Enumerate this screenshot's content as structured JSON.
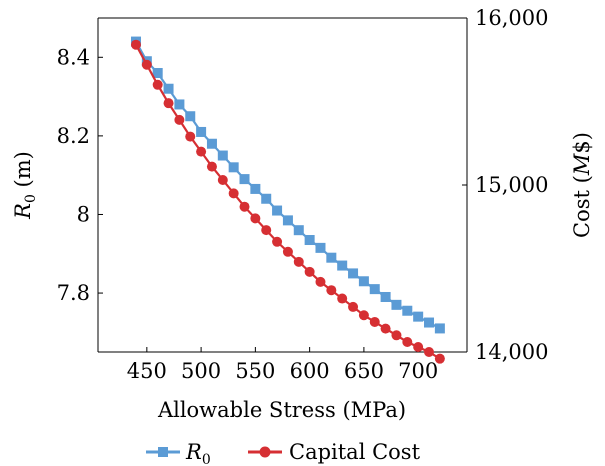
{
  "chart_data": {
    "type": "line",
    "xlabel": "Allowable Stress (MPa)",
    "ylabel_left": "R0 (m)",
    "ylabel_right": "Cost (M$)",
    "xlim": [
      405,
      745
    ],
    "ylim_left": [
      7.65,
      8.5
    ],
    "ylim_right": [
      14000,
      16000
    ],
    "xticks": [
      450,
      500,
      550,
      600,
      650,
      700
    ],
    "yticks_left": [
      7.8,
      8,
      8.2,
      8.4
    ],
    "yticks_right": [
      14000,
      15000,
      16000
    ],
    "ytick_labels_left": [
      "7.8",
      "8",
      "8.2",
      "8.4"
    ],
    "ytick_labels_right": [
      "14,000",
      "15,000",
      "16,000"
    ],
    "grid": false,
    "legend_position": "bottom-center",
    "x": [
      440,
      450,
      460,
      470,
      480,
      490,
      500,
      510,
      520,
      530,
      540,
      550,
      560,
      570,
      580,
      590,
      600,
      610,
      620,
      630,
      640,
      650,
      660,
      670,
      680,
      690,
      700,
      710,
      720
    ],
    "series": [
      {
        "name": "R0",
        "axis": "left",
        "color": "#5b9bd5",
        "marker": "square",
        "values": [
          8.44,
          8.39,
          8.36,
          8.32,
          8.28,
          8.25,
          8.21,
          8.18,
          8.15,
          8.12,
          8.09,
          8.065,
          8.04,
          8.01,
          7.985,
          7.96,
          7.935,
          7.915,
          7.89,
          7.87,
          7.85,
          7.83,
          7.81,
          7.79,
          7.77,
          7.755,
          7.74,
          7.725,
          7.71
        ]
      },
      {
        "name": "Capital Cost",
        "axis": "right",
        "color": "#d62f33",
        "marker": "circle",
        "values": [
          15840,
          15720,
          15600,
          15490,
          15390,
          15290,
          15200,
          15110,
          15030,
          14950,
          14870,
          14800,
          14730,
          14660,
          14600,
          14540,
          14480,
          14420,
          14370,
          14320,
          14270,
          14220,
          14180,
          14140,
          14100,
          14060,
          14030,
          14000,
          13960
        ]
      }
    ]
  },
  "legend": {
    "series1_label": "R",
    "series1_subscript": "0",
    "series2_label": "Capital Cost"
  },
  "axes": {
    "ylabel_left_main": "R",
    "ylabel_left_sub": "0",
    "ylabel_left_rest": " (m)",
    "ylabel_right_main": "Cost (",
    "ylabel_right_italic": "M",
    "ylabel_right_rest": "$)"
  }
}
